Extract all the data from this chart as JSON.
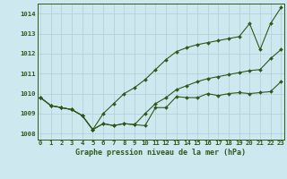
{
  "title": "Graphe pression niveau de la mer (hPa)",
  "background_color": "#cee8f0",
  "line_color": "#2d5a1b",
  "grid_color": "#b0cfd8",
  "xlim": [
    0,
    23
  ],
  "ylim": [
    1007.7,
    1014.5
  ],
  "yticks": [
    1008,
    1009,
    1010,
    1011,
    1012,
    1013,
    1014
  ],
  "xticks": [
    0,
    1,
    2,
    3,
    4,
    5,
    6,
    7,
    8,
    9,
    10,
    11,
    12,
    13,
    14,
    15,
    16,
    17,
    18,
    19,
    20,
    21,
    22,
    23
  ],
  "series": {
    "line1": [
      1009.8,
      1009.4,
      1009.3,
      1009.2,
      1008.9,
      1008.2,
      1008.5,
      1008.4,
      1008.5,
      1008.45,
      1008.4,
      1009.3,
      1009.3,
      1009.85,
      1009.8,
      1009.8,
      1010.0,
      1009.9,
      1010.0,
      1010.05,
      1010.0,
      1010.05,
      1010.1,
      1010.6
    ],
    "line2": [
      1009.8,
      1009.4,
      1009.3,
      1009.2,
      1008.9,
      1008.2,
      1008.5,
      1008.4,
      1008.5,
      1008.45,
      1009.0,
      1009.5,
      1009.8,
      1010.2,
      1010.4,
      1010.6,
      1010.75,
      1010.85,
      1010.95,
      1011.05,
      1011.15,
      1011.2,
      1011.75,
      1012.2
    ],
    "line3": [
      1009.8,
      1009.4,
      1009.3,
      1009.2,
      1008.9,
      1008.2,
      1009.0,
      1009.5,
      1010.0,
      1010.3,
      1010.7,
      1011.2,
      1011.7,
      1012.1,
      1012.3,
      1012.45,
      1012.55,
      1012.65,
      1012.75,
      1012.85,
      1013.5,
      1012.2,
      1013.5,
      1014.3
    ]
  }
}
